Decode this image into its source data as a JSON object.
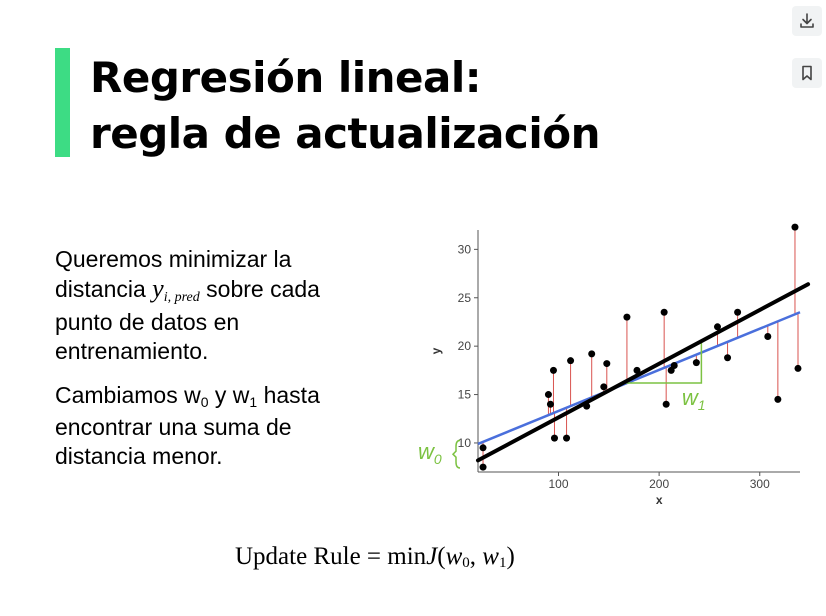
{
  "colors": {
    "accent": "#3ddc84",
    "black_line": "#000000",
    "blue_line": "#4a6fdc",
    "residual": "#d9534f",
    "annotation": "#7cc242"
  },
  "toolbar": {
    "download_icon": "download-icon",
    "bookmark_icon": "bookmark-icon"
  },
  "slide": {
    "title_line1": "Regresión lineal:",
    "title_line2": "regla de actualización",
    "para1": {
      "text1": "Queremos minimizar la distancia",
      "var": "y",
      "var_sub": "i, pred",
      "text2": "sobre cada punto de datos en entrenamiento."
    },
    "para2": {
      "text1": "Cambiamos w",
      "sub0": "0",
      "text2": " y w",
      "sub1": "1",
      "text3": " hasta encontrar una suma de distancia menor."
    },
    "formula": {
      "lhs": "Update Rule =",
      "op": "min",
      "fn": "J",
      "arg1": "w",
      "arg1_sub": "0",
      "arg2": "w",
      "arg2_sub": "1"
    }
  },
  "chart_data": {
    "type": "scatter",
    "xlabel": "x",
    "ylabel": "y",
    "xlim": [
      20,
      340
    ],
    "ylim": [
      7,
      32
    ],
    "xticks": [
      100,
      200,
      300
    ],
    "yticks": [
      10,
      15,
      20,
      25,
      30
    ],
    "grid": false,
    "points": [
      {
        "x": 25,
        "y": 7.5
      },
      {
        "x": 25,
        "y": 9.5
      },
      {
        "x": 90,
        "y": 15
      },
      {
        "x": 92,
        "y": 14
      },
      {
        "x": 95,
        "y": 17.5
      },
      {
        "x": 96,
        "y": 10.5
      },
      {
        "x": 108,
        "y": 10.5
      },
      {
        "x": 112,
        "y": 18.5
      },
      {
        "x": 128,
        "y": 13.8
      },
      {
        "x": 133,
        "y": 19.2
      },
      {
        "x": 145,
        "y": 15.8
      },
      {
        "x": 148,
        "y": 18.2
      },
      {
        "x": 168,
        "y": 23
      },
      {
        "x": 178,
        "y": 17.5
      },
      {
        "x": 205,
        "y": 23.5
      },
      {
        "x": 207,
        "y": 14
      },
      {
        "x": 212,
        "y": 17.5
      },
      {
        "x": 215,
        "y": 18
      },
      {
        "x": 237,
        "y": 18.3
      },
      {
        "x": 258,
        "y": 22
      },
      {
        "x": 268,
        "y": 18.8
      },
      {
        "x": 278,
        "y": 23.5
      },
      {
        "x": 308,
        "y": 21
      },
      {
        "x": 318,
        "y": 14.5
      },
      {
        "x": 335,
        "y": 32.3
      },
      {
        "x": 338,
        "y": 17.7
      }
    ],
    "lines": [
      {
        "color": "#000000",
        "x": [
          20,
          350
        ],
        "y": [
          8.2,
          26.4
        ]
      },
      {
        "color": "#4a6fdc",
        "x": [
          20,
          340
        ],
        "y": [
          9.9,
          23.5
        ]
      }
    ],
    "annotations": [
      {
        "label": "w",
        "sub": "1",
        "kind": "slope"
      },
      {
        "label": "w",
        "sub": "0",
        "kind": "intercept"
      }
    ]
  }
}
